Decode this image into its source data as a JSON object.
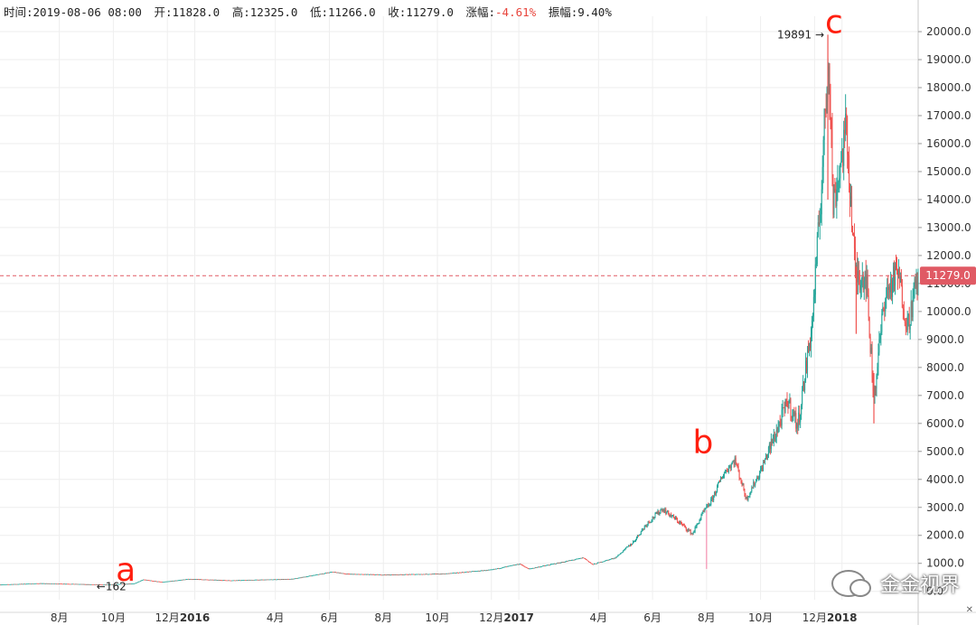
{
  "header": {
    "time_label": "时间:",
    "time_value": "2019-08-06 08:00",
    "open_label": "开:",
    "open_value": "11828.0",
    "high_label": "高:",
    "high_value": "12325.0",
    "low_label": "低:",
    "low_value": "11266.0",
    "close_label": "收:",
    "close_value": "11279.0",
    "change_label": "涨幅:",
    "change_value": "-4.61%",
    "amplitude_label": "振幅:",
    "amplitude_value": "9.40%"
  },
  "watermark": "金金视界",
  "colors": {
    "up": "#26a69a",
    "down": "#ef5350",
    "annotation": "#ff1f0f",
    "price_line": "#e05a64",
    "grid": "#eeeeee"
  },
  "chart_data": {
    "type": "candlestick",
    "y_axis_labels": [
      "0.0",
      "1000.0",
      "2000.0",
      "3000.0",
      "4000.0",
      "5000.0",
      "6000.0",
      "7000.0",
      "8000.0",
      "9000.0",
      "10000.0",
      "11000.0",
      "12000.0",
      "13000.0",
      "14000.0",
      "15000.0",
      "16000.0",
      "17000.0",
      "18000.0",
      "19000.0",
      "20000.0"
    ],
    "ylim": [
      -300,
      20550
    ],
    "x_axis_labels": [
      {
        "label": "8月",
        "date": "2015-08-01"
      },
      {
        "label": "10月",
        "date": "2015-10-01"
      },
      {
        "label": "12月",
        "date": "2015-12-01"
      },
      {
        "label": "2016",
        "date": "2016-01-01",
        "bold": true
      },
      {
        "label": "4月",
        "date": "2016-04-01"
      },
      {
        "label": "6月",
        "date": "2016-06-01"
      },
      {
        "label": "8月",
        "date": "2016-08-01"
      },
      {
        "label": "10月",
        "date": "2016-10-01"
      },
      {
        "label": "12月",
        "date": "2016-12-01"
      },
      {
        "label": "2017",
        "date": "2017-01-01",
        "bold": true
      },
      {
        "label": "4月",
        "date": "2017-04-01"
      },
      {
        "label": "6月",
        "date": "2017-06-01"
      },
      {
        "label": "8月",
        "date": "2017-08-01"
      },
      {
        "label": "10月",
        "date": "2017-10-01"
      },
      {
        "label": "12月",
        "date": "2017-12-01"
      },
      {
        "label": "2018",
        "date": "2018-01-01",
        "bold": true
      }
    ],
    "x_range": [
      "2015-05-26",
      "2018-03-28"
    ],
    "price_path": [
      [
        "2015-05-26",
        240
      ],
      [
        "2015-07-10",
        285
      ],
      [
        "2015-08-15",
        265
      ],
      [
        "2015-09-20",
        235
      ],
      [
        "2015-10-25",
        280
      ],
      [
        "2015-11-04",
        420
      ],
      [
        "2015-11-25",
        330
      ],
      [
        "2015-12-25",
        440
      ],
      [
        "2016-02-10",
        390
      ],
      [
        "2016-04-20",
        440
      ],
      [
        "2016-06-05",
        700
      ],
      [
        "2016-06-20",
        620
      ],
      [
        "2016-08-05",
        590
      ],
      [
        "2016-10-10",
        630
      ],
      [
        "2016-12-01",
        770
      ],
      [
        "2017-01-02",
        980
      ],
      [
        "2017-01-12",
        800
      ],
      [
        "2017-02-20",
        1050
      ],
      [
        "2017-03-15",
        1200
      ],
      [
        "2017-03-25",
        960
      ],
      [
        "2017-04-20",
        1200
      ],
      [
        "2017-05-10",
        1750
      ],
      [
        "2017-05-25",
        2400
      ],
      [
        "2017-06-12",
        2950
      ],
      [
        "2017-06-30",
        2500
      ],
      [
        "2017-07-16",
        2050
      ],
      [
        "2017-07-28",
        2800
      ],
      [
        "2017-08-06",
        3200
      ],
      [
        "2017-08-20",
        4200
      ],
      [
        "2017-09-02",
        4700
      ],
      [
        "2017-09-15",
        3300
      ],
      [
        "2017-10-01",
        4300
      ],
      [
        "2017-10-20",
        5800
      ],
      [
        "2017-11-01",
        6800
      ],
      [
        "2017-11-12",
        5900
      ],
      [
        "2017-11-28",
        9500
      ],
      [
        "2017-12-07",
        13500
      ],
      [
        "2017-12-17",
        19400
      ],
      [
        "2017-12-22",
        13800
      ],
      [
        "2018-01-06",
        16500
      ],
      [
        "2018-01-16",
        11300
      ],
      [
        "2018-01-28",
        11300
      ],
      [
        "2018-02-06",
        6900
      ],
      [
        "2018-02-18",
        10500
      ],
      [
        "2018-03-05",
        11400
      ],
      [
        "2018-03-16",
        9500
      ],
      [
        "2018-03-28",
        11279
      ]
    ],
    "last_price": 11279.0,
    "last_price_label": "11279.0",
    "annotations": [
      {
        "text": "a",
        "date": "2015-10-15",
        "price": 380
      },
      {
        "text": "b",
        "date": "2017-07-28",
        "price": 4950
      },
      {
        "text": "c",
        "date": "2017-12-23",
        "price": 19950
      }
    ],
    "markers": [
      {
        "text": "162",
        "arrow": "←",
        "date": "2015-09-12",
        "price": 162,
        "side": "right"
      },
      {
        "text": "19891",
        "arrow": "→",
        "date": "2017-12-16",
        "price": 19891,
        "side": "left"
      }
    ]
  }
}
